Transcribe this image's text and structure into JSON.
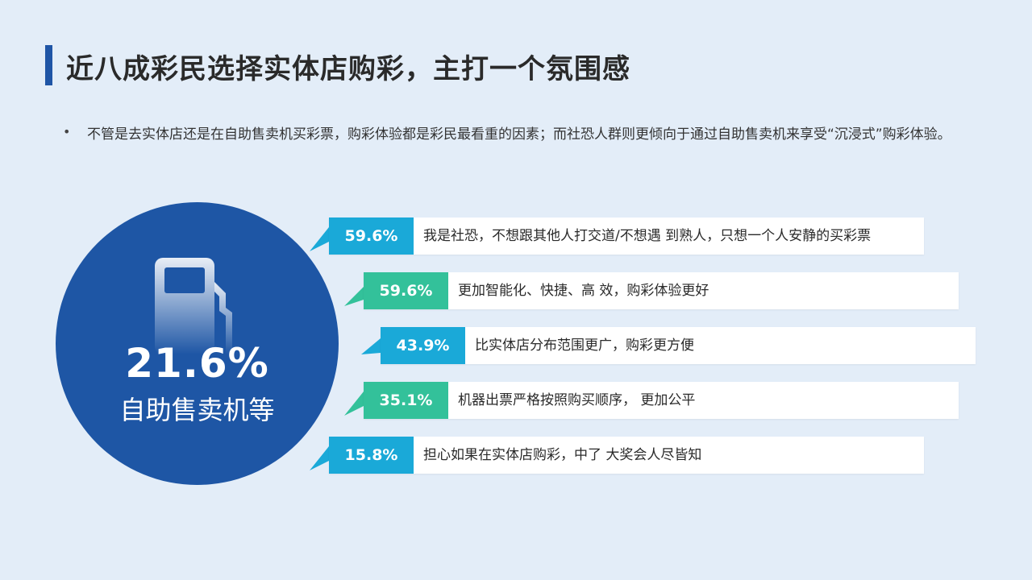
{
  "title": "近八成彩民选择实体店购彩，主打一个氛围感",
  "bullet": {
    "symbol": "•",
    "text": "不管是去实体店还是在自助售卖机买彩票，购彩体验都是彩民最看重的因素；而社恐人群则更倾向于通过自助售卖机来享受“沉浸式”购彩体验。"
  },
  "highlight": {
    "icon": "fuel-pump-icon",
    "value": "21.6%",
    "label": "自助售卖机等",
    "color": "#1e56a5"
  },
  "reasons": [
    {
      "value": "59.6%",
      "text": "我是社恐，不想跟其他人打交道/不想遇 到熟人，只想一个人安静的买彩票",
      "color": "#1aa9d8"
    },
    {
      "value": "59.6%",
      "text": "更加智能化、快捷、高 效，购彩体验更好",
      "color": "#33c19a"
    },
    {
      "value": "43.9%",
      "text": "比实体店分布范围更广，购彩更方便",
      "color": "#1aa9d8"
    },
    {
      "value": "35.1%",
      "text": "机器出票严格按照购买顺序， 更加公平",
      "color": "#33c19a"
    },
    {
      "value": "15.8%",
      "text": "担心如果在实体店购彩，中了 大奖会人尽皆知",
      "color": "#1aa9d8"
    }
  ]
}
